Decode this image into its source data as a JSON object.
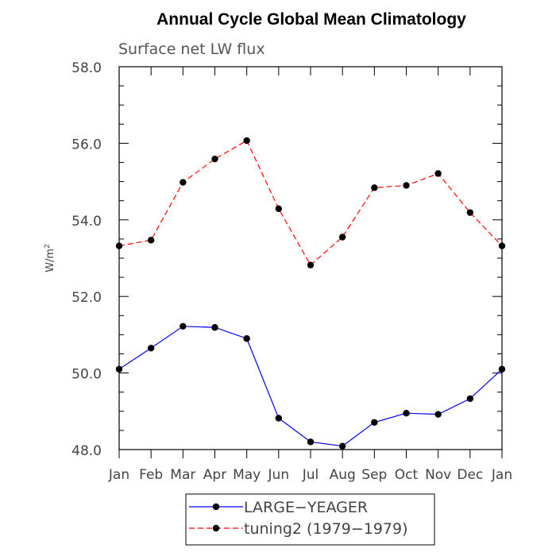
{
  "chart_data": {
    "type": "line",
    "title": "Annual Cycle Global Mean Climatology",
    "subtitle": "Surface net LW flux",
    "ylabel": "W/m",
    "ylabel_sup": "2",
    "xlabel": "",
    "categories": [
      "Jan",
      "Feb",
      "Mar",
      "Apr",
      "May",
      "Jun",
      "Jul",
      "Aug",
      "Sep",
      "Oct",
      "Nov",
      "Dec",
      "Jan"
    ],
    "ylim": [
      48.0,
      58.0
    ],
    "yticks": [
      "48.0",
      "50.0",
      "52.0",
      "54.0",
      "56.0",
      "58.0"
    ],
    "series": [
      {
        "name": "LARGE−YEAGER",
        "color": "#0000ff",
        "dash": "solid",
        "marker": "filled-circle",
        "values": [
          50.1,
          50.65,
          51.22,
          51.19,
          50.9,
          48.82,
          48.2,
          48.09,
          48.71,
          48.95,
          48.92,
          49.33,
          50.1
        ]
      },
      {
        "name": "tuning2 (1979−1979)",
        "color": "#ff0000",
        "dash": "dashed",
        "marker": "filled-circle",
        "values": [
          53.32,
          53.47,
          54.98,
          55.59,
          56.07,
          54.29,
          52.82,
          53.55,
          54.84,
          54.9,
          55.21,
          54.19,
          53.32
        ]
      }
    ],
    "legend": "bottom-center",
    "grid": false
  }
}
